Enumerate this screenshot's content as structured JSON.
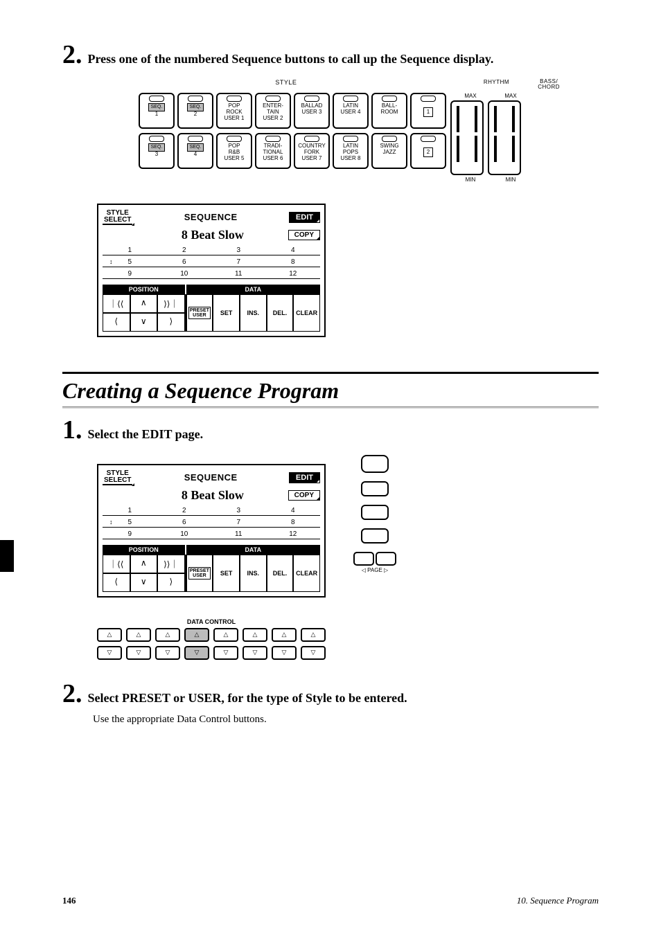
{
  "step2_top": {
    "num": "2.",
    "text": "Press one of the numbered Sequence buttons to call up the Sequence display."
  },
  "style_panel": {
    "header_style": "STYLE",
    "header_rhythm": "RHYTHM",
    "header_bass": "BASS/\nCHORD",
    "max": "MAX",
    "min": "MIN",
    "row1": [
      {
        "type": "seq",
        "inner": "SEQ.",
        "sub": "1"
      },
      {
        "type": "seq",
        "inner": "SEQ.",
        "sub": "2"
      },
      {
        "type": "txt",
        "l1": "POP",
        "l2": "ROCK",
        "l3": "USER 1"
      },
      {
        "type": "txt",
        "l1": "ENTER-",
        "l2": "TAIN",
        "l3": "USER 2"
      },
      {
        "type": "txt",
        "l1": "BALLAD",
        "l2": "",
        "l3": "USER 3"
      },
      {
        "type": "txt",
        "l1": "LATIN",
        "l2": "",
        "l3": "USER 4"
      },
      {
        "type": "txt",
        "l1": "BALL-",
        "l2": "ROOM",
        "l3": ""
      },
      {
        "type": "num",
        "n": "1"
      }
    ],
    "row2": [
      {
        "type": "seq",
        "inner": "SEQ.",
        "sub": "3"
      },
      {
        "type": "seq",
        "inner": "SEQ.",
        "sub": "4"
      },
      {
        "type": "txt",
        "l1": "POP",
        "l2": "R&B",
        "l3": "USER 5"
      },
      {
        "type": "txt",
        "l1": "TRADI-",
        "l2": "TIONAL",
        "l3": "USER 6"
      },
      {
        "type": "txt",
        "l1": "COUNTRY",
        "l2": "FORK",
        "l3": "USER 7"
      },
      {
        "type": "txt",
        "l1": "LATIN",
        "l2": "POPS",
        "l3": "USER 8"
      },
      {
        "type": "txt",
        "l1": "SWING",
        "l2": "JAZZ",
        "l3": ""
      },
      {
        "type": "num",
        "n": "2"
      }
    ]
  },
  "lcd": {
    "style_select": "STYLE\nSELECT",
    "title": "SEQUENCE",
    "edit": "EDIT",
    "style_name": "8 Beat Slow",
    "copy": "COPY",
    "grid": {
      "r1": [
        "1",
        "2",
        "3",
        "4"
      ],
      "r2": [
        "5",
        "6",
        "7",
        "8"
      ],
      "r3": [
        "9",
        "10",
        "11",
        "12"
      ]
    },
    "bar_position": "POSITION",
    "bar_data": "DATA",
    "ctrl_left_r1": [
      "｜⟨⟨",
      "∧",
      "⟩⟩｜"
    ],
    "ctrl_left_r2": [
      "⟨",
      "∨",
      "⟩"
    ],
    "ctrl_right": [
      "PRESET\nUSER",
      "SET",
      "INS.",
      "DEL.",
      "CLEAR"
    ]
  },
  "section_heading": "Creating a Sequence Program",
  "step1_create": {
    "num": "1.",
    "text": "Select the EDIT page."
  },
  "side_buttons": {
    "page_label": "◁ PAGE ▷"
  },
  "data_control": {
    "title": "DATA CONTROL",
    "up": "△",
    "down": "▽",
    "highlight_index": 3
  },
  "step2_bottom": {
    "num": "2.",
    "text": "Select PRESET or USER, for the type of Style to be entered.",
    "sub": "Use the appropriate Data Control buttons."
  },
  "footer": {
    "page_num": "146",
    "chapter": "10. Sequence Program"
  }
}
